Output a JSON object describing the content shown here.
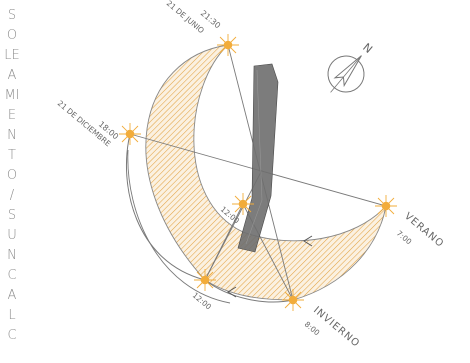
{
  "title": "SOLEAMIENTO / SUNCALC",
  "colors": {
    "hatch": "#e3a445",
    "sun": "#f2ac3a",
    "building": "#6e6e6e",
    "line": "#7a7a7a"
  },
  "labels": {
    "summer_solstice_date": "21 DE JUNIO",
    "summer_sunset_time": "21:30",
    "winter_solstice_date": "21 DE DICIEMBRE",
    "winter_sunset_time": "18:00",
    "summer_label": "VERANO",
    "summer_sunrise_time": "7:00",
    "winter_label": "INVIERNO",
    "winter_sunrise_time": "8:00",
    "noon_summer": "12:00",
    "noon_winter": "12:00"
  },
  "north_arrow": {
    "label": "N",
    "icon": "north-arrow-icon"
  }
}
